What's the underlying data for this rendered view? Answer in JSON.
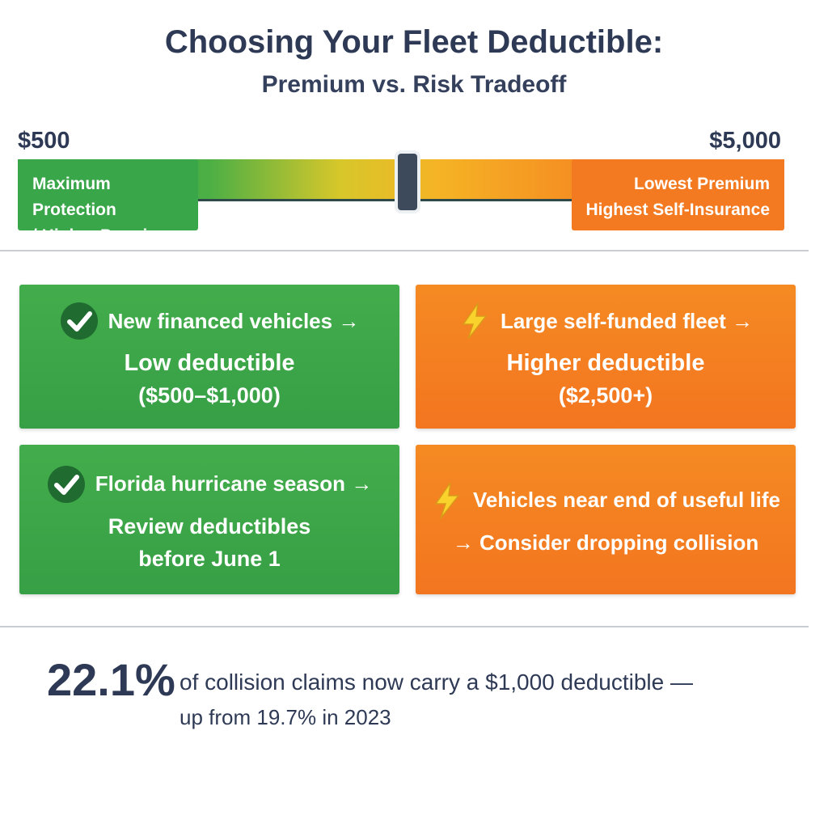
{
  "header": {
    "title": "Choosing Your Fleet Deductible:",
    "subtitle": "Premium vs. Risk Tradeoff"
  },
  "slider": {
    "min_label": "$500",
    "max_label": "$5,000",
    "left_label": [
      "Maximum Protection",
      "/ Higher Premium"
    ],
    "right_label": [
      "Lowest Premium",
      "Highest Self-Insurance"
    ]
  },
  "cards": [
    {
      "lines": [
        "New financed vehicles →",
        "Low deductible",
        "($500–$1,000)"
      ]
    },
    {
      "lines": [
        "Large self-funded fleet →",
        "Higher deductible",
        "($2,500+)"
      ]
    },
    {
      "lines": [
        "Florida hurricane season →",
        "Review deductibles",
        "before June 1"
      ]
    },
    {
      "lines": [
        "Vehicles near end of useful life",
        "→ Consider dropping collision"
      ]
    }
  ],
  "stat": {
    "figure": "22.1%",
    "line1": "of collision claims now carry a $1,000 deductible —",
    "line2": "up from 19.7% in 2023"
  }
}
